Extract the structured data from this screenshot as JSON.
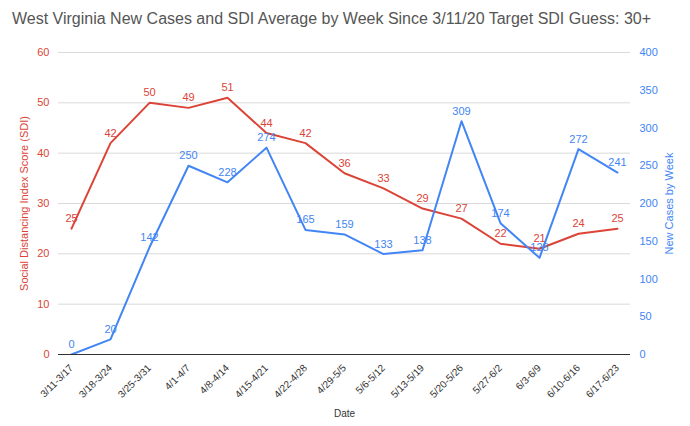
{
  "chart_data": {
    "type": "line",
    "title": "West Virginia New Cases and SDI Average by Week Since 3/11/20 Target SDI Guess: 30+",
    "x_label": "Date",
    "y_label": "Social Distancing Index Score (SDI)",
    "y2_label": "New Cases by Week",
    "categories": [
      "3/11-3/17",
      "3/18-3/24",
      "3/25-3/31",
      "4/1-4/7",
      "4/8-4/14",
      "4/15-4/21",
      "4/22-4/28",
      "4/29-5/5",
      "5/6-5/12",
      "5/13-5/19",
      "5/20-5/26",
      "5/27-6/2",
      "6/3-6/9",
      "6/10-6/16",
      "6/17-6/23"
    ],
    "series": [
      {
        "color": "#db4437",
        "values": [
          25,
          42,
          50,
          49,
          51,
          44,
          42,
          36,
          33,
          29,
          27,
          22,
          21,
          24,
          25
        ]
      },
      {
        "color": "#4285f4",
        "axis": "y2",
        "values": [
          0,
          20,
          142,
          250,
          228,
          274,
          165,
          159,
          133,
          138,
          309,
          174,
          128,
          272,
          241
        ]
      }
    ],
    "ylim": [
      0,
      60
    ],
    "yticks": [
      0,
      10,
      20,
      30,
      40,
      50,
      60
    ],
    "y2lim": [
      0,
      400
    ],
    "y2ticks": [
      0,
      50,
      100,
      150,
      200,
      250,
      300,
      350,
      400
    ],
    "grid": true,
    "data_labels": true
  }
}
